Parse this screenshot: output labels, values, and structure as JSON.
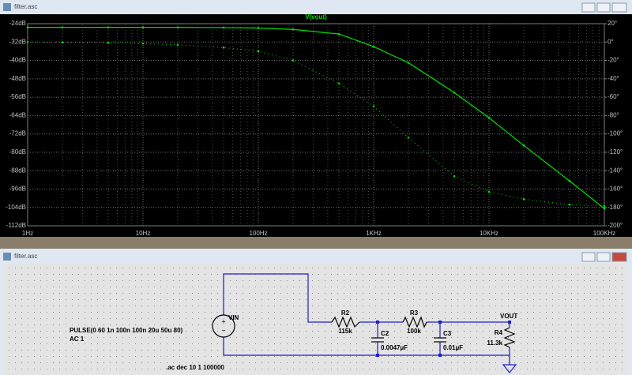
{
  "plot_window": {
    "title": "filter.asc"
  },
  "chart_data": {
    "type": "line",
    "title": "V(vout)",
    "x": [
      1,
      2,
      5,
      10,
      20,
      50,
      100,
      200,
      500,
      1000,
      2000,
      5000,
      10000,
      20000,
      50000,
      100000
    ],
    "xlog": true,
    "xlim": [
      1,
      100000
    ],
    "xticks": [
      {
        "value": 1,
        "label": "1Hz"
      },
      {
        "value": 10,
        "label": "10Hz"
      },
      {
        "value": 100,
        "label": "100Hz"
      },
      {
        "value": 1000,
        "label": "1KHz"
      },
      {
        "value": 10000,
        "label": "10KHz"
      },
      {
        "value": 100000,
        "label": "100KHz"
      }
    ],
    "ylim": [
      -112,
      -24
    ],
    "yticks": [
      {
        "value": -24,
        "label": "-24dB"
      },
      {
        "value": -32,
        "label": "-32dB"
      },
      {
        "value": -40,
        "label": "-40dB"
      },
      {
        "value": -48,
        "label": "-48dB"
      },
      {
        "value": -56,
        "label": "-56dB"
      },
      {
        "value": -64,
        "label": "-64dB"
      },
      {
        "value": -72,
        "label": "-72dB"
      },
      {
        "value": -80,
        "label": "-80dB"
      },
      {
        "value": -88,
        "label": "-88dB"
      },
      {
        "value": -96,
        "label": "-96dB"
      },
      {
        "value": -104,
        "label": "-104dB"
      },
      {
        "value": -112,
        "label": "-112dB"
      }
    ],
    "y2lim": [
      -200,
      20
    ],
    "y2ticks": [
      {
        "value": 20,
        "label": "20°"
      },
      {
        "value": 0,
        "label": "0°"
      },
      {
        "value": -20,
        "label": "-20°"
      },
      {
        "value": -40,
        "label": "-40°"
      },
      {
        "value": -60,
        "label": "-60°"
      },
      {
        "value": -80,
        "label": "-80°"
      },
      {
        "value": -100,
        "label": "-100°"
      },
      {
        "value": -120,
        "label": "-120°"
      },
      {
        "value": -140,
        "label": "-140°"
      },
      {
        "value": -160,
        "label": "-160°"
      },
      {
        "value": -180,
        "label": "-180°"
      },
      {
        "value": -200,
        "label": "-200°"
      }
    ],
    "grid": true,
    "series": [
      {
        "color": "#00e000",
        "line": "solid",
        "values": [
          -25.6,
          -25.6,
          -25.6,
          -25.6,
          -25.6,
          -25.7,
          -25.9,
          -26.5,
          -28.5,
          -34,
          -41,
          -54,
          -65,
          -77,
          -92.5,
          -104.5
        ]
      },
      {
        "color": "#00e000",
        "line": "dotted",
        "axis": "y2",
        "values": [
          0,
          -0.3,
          -0.7,
          -1.5,
          -3,
          -6,
          -10,
          -20,
          -45,
          -70,
          -104,
          -146,
          -163,
          -171,
          -177,
          -178.5
        ]
      }
    ]
  },
  "schematic_window": {
    "title": "filter.asc",
    "source": {
      "name": "VIN",
      "value": "PULSE(0 60 1n 100n 100n 20u 50u 80)",
      "ac": "AC 1"
    },
    "components": [
      {
        "name": "R2",
        "value": "115k"
      },
      {
        "name": "R3",
        "value": "100k"
      },
      {
        "name": "C2",
        "value": "0.0047µF"
      },
      {
        "name": "C3",
        "value": "0.01µF"
      },
      {
        "name": "R4",
        "value": "11.3k"
      }
    ],
    "net_label": "VOUT",
    "directive": ".ac dec 10 1 100000"
  }
}
